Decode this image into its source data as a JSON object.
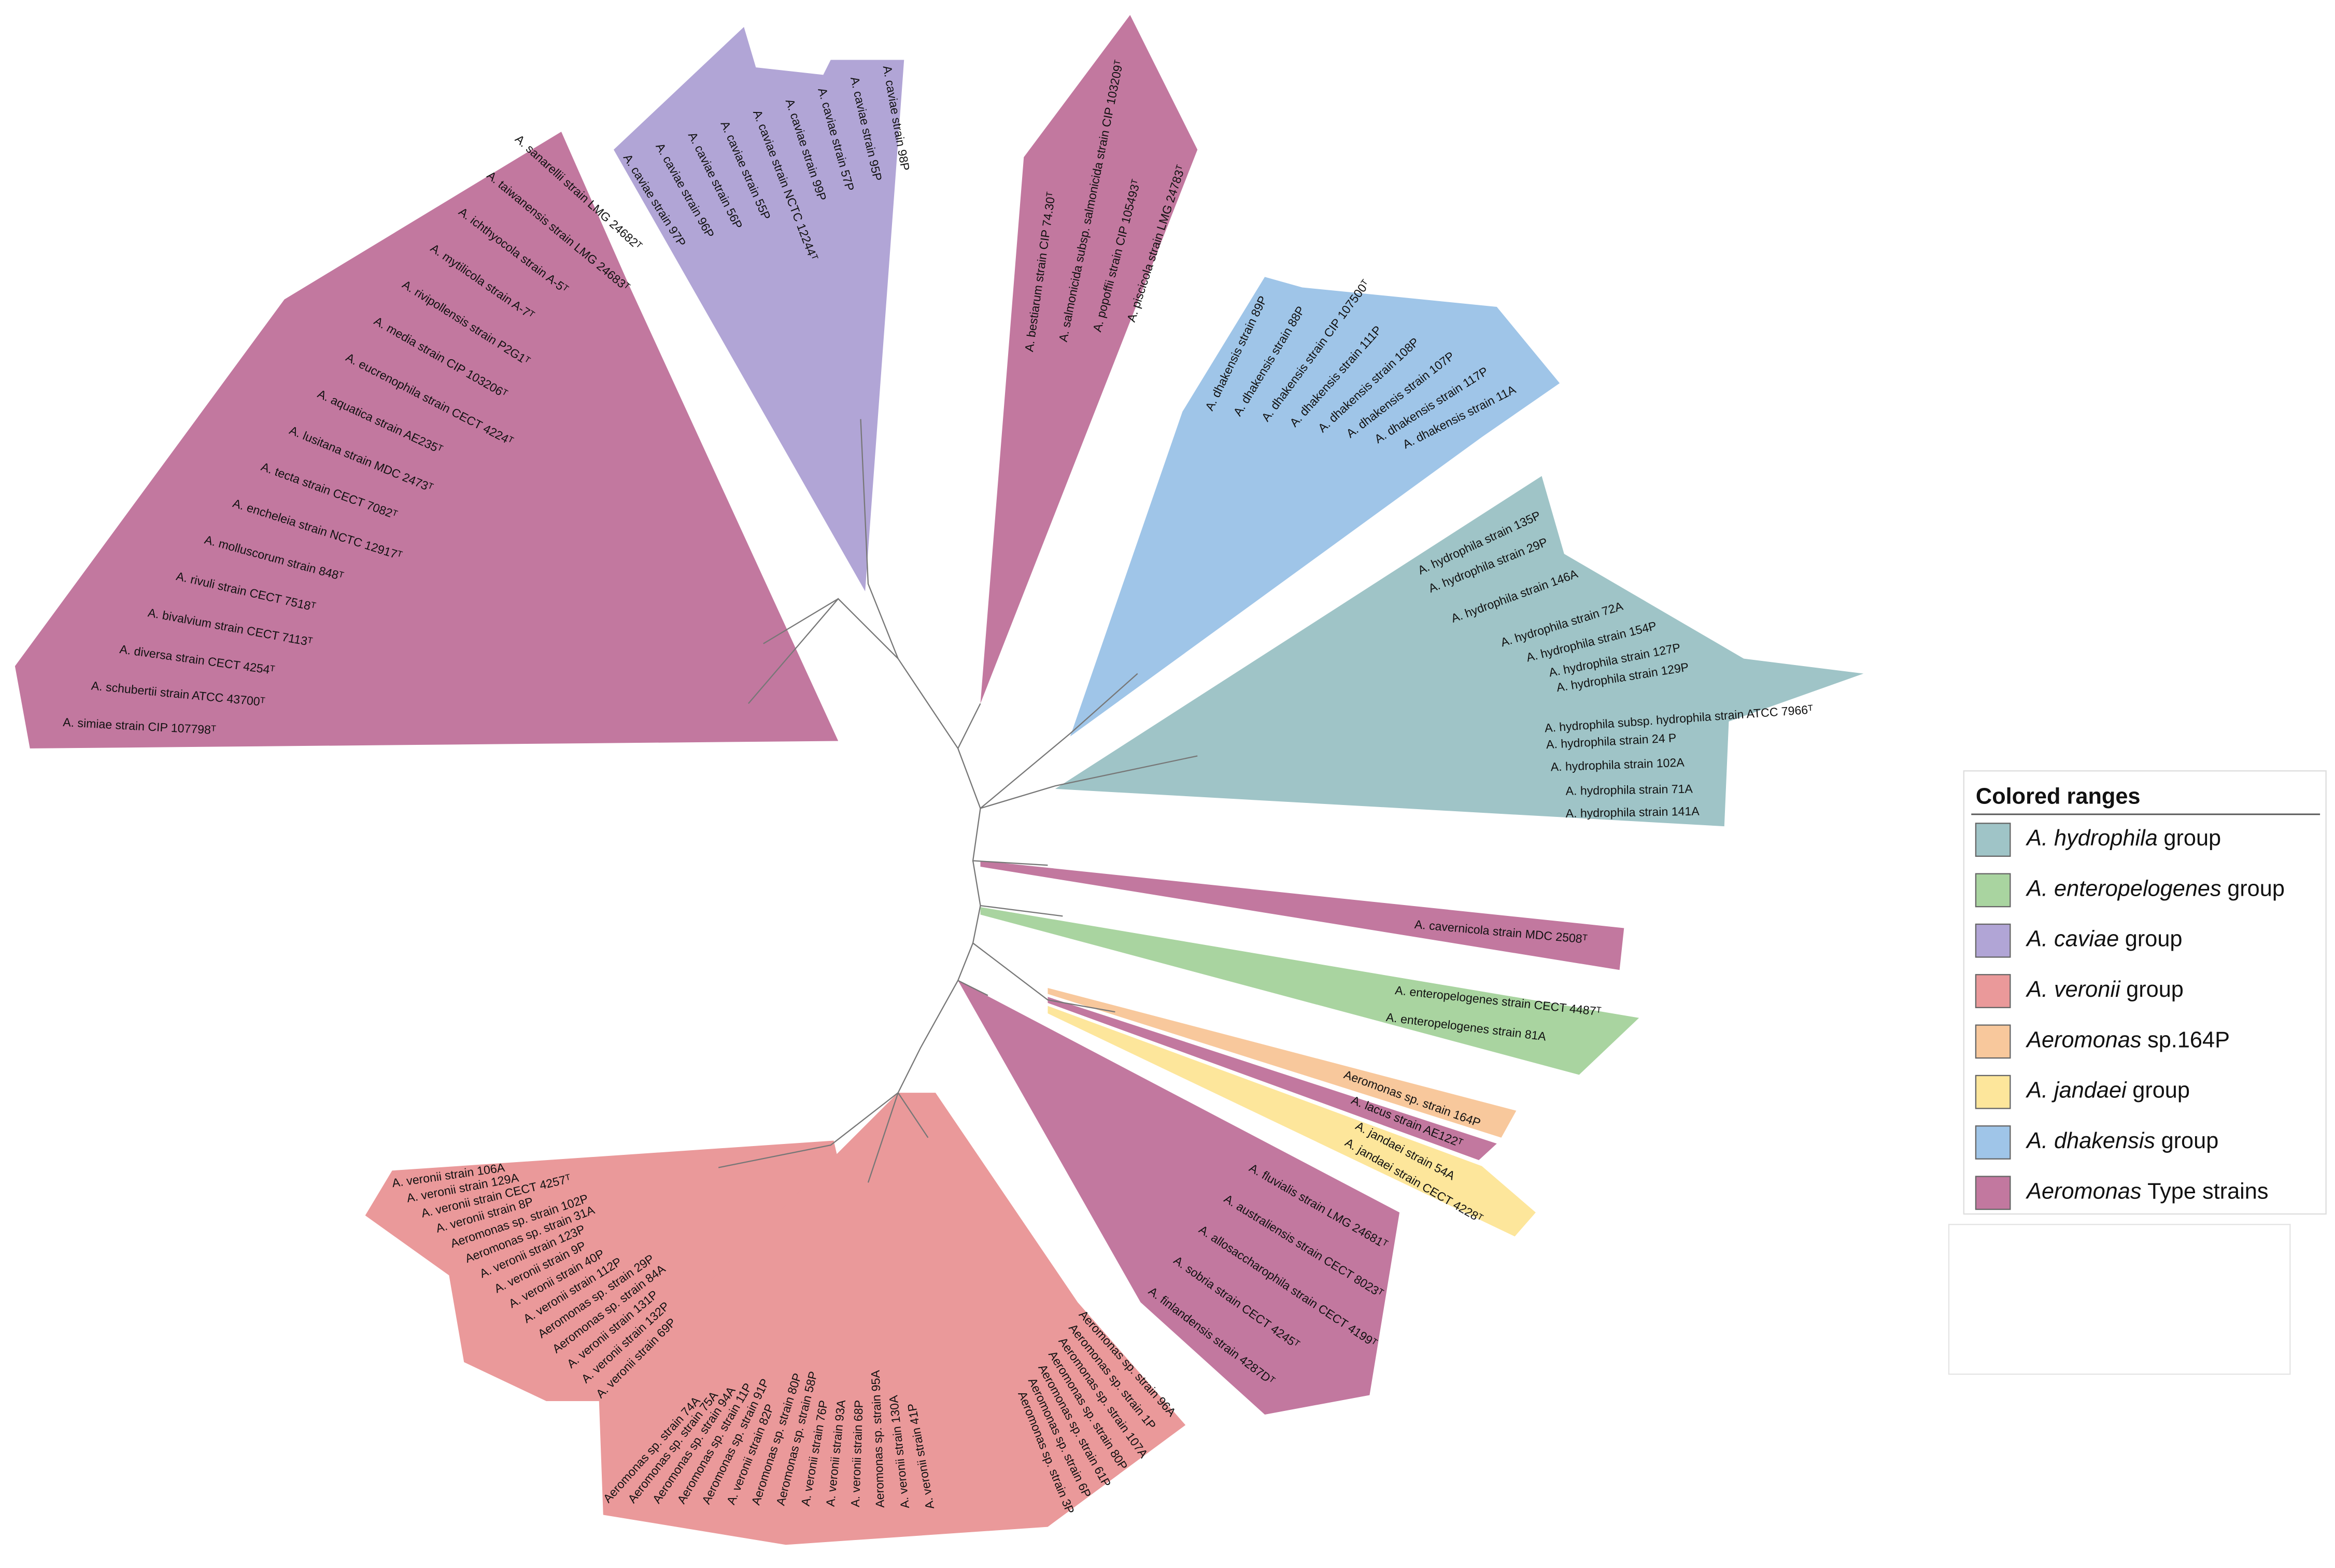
{
  "legend": {
    "title": "Colored ranges",
    "items": [
      {
        "italic": "A. hydrophila",
        "suffix": "group",
        "color": "#9fc4c7"
      },
      {
        "italic": "A. enteropelogenes",
        "suffix": "group",
        "color": "#a9d4a0"
      },
      {
        "italic": "A. caviae",
        "suffix": "group",
        "color": "#b1a5d6"
      },
      {
        "italic": "A. veronii",
        "suffix": "group",
        "color": "#ea999a"
      },
      {
        "italic": "Aeromonas",
        "suffix": "sp.164P",
        "color": "#f8c89c"
      },
      {
        "italic": "A. jandaei",
        "suffix": "group",
        "color": "#fde69b"
      },
      {
        "italic": "A. dhakensis",
        "suffix": "group",
        "color": "#9fc5e8"
      },
      {
        "italic": "Aeromonas",
        "suffix": "Type strains",
        "color": "#c2789f"
      }
    ]
  },
  "ranges": [
    [
      "A. sanarellii strain LMG 24682ᵀ",
      "A. taiwanensis strain LMG 24683ᵀ",
      "A. ichthyocola strain A-5ᵀ",
      "A. mytilicola strain A-7ᵀ",
      "A. rivipollensis strain P2G1ᵀ",
      "A. media strain CIP 103206ᵀ",
      "A. eucrenophila strain CECT 4224ᵀ",
      "A. aquatica strain AE235ᵀ",
      "A. lusitana strain MDC 2473ᵀ",
      "A. tecta strain CECT 7082ᵀ",
      "A. encheleia strain NCTC 12917ᵀ",
      "A. molluscorum strain 848ᵀ",
      "A. rivuli strain CECT 7518ᵀ",
      "A. bivalvium strain CECT 7113ᵀ",
      "A. diversa strain CECT 4254ᵀ",
      "A. schubertii strain ATCC 43700ᵀ",
      "A. simiae strain CIP 107798ᵀ"
    ],
    [
      "A. caviae strain 97P",
      "A. caviae strain 96P",
      "A. caviae strain 56P",
      "A. caviae strain 55P",
      "A. caviae strain NCTC 12244ᵀ",
      "A. caviae strain 99P",
      "A. caviae strain 57P",
      "A. caviae strain 95P",
      "A. caviae strain 98P"
    ],
    [
      "A. bestiarum strain CIP 74.30ᵀ",
      "A. salmonicida subsp. salmonicida strain CIP 103209ᵀ",
      "A. popoffii strain CIP 105493ᵀ",
      "A. piscicola strain LMG 24783ᵀ"
    ],
    [
      "A. dhakensis strain 89P",
      "A. dhakensis strain 88P",
      "A. dhakensis strain CIP 107500ᵀ",
      "A. dhakensis strain 111P",
      "A. dhakensis strain 108P",
      "A. dhakensis strain 107P",
      "A. dhakensis strain 117P",
      "A. dhakensis strain 11A"
    ],
    [
      "A. hydrophila strain 135P",
      "A. hydrophila strain 29P",
      "A. hydrophila strain 146A",
      "A. hydrophila strain 72A",
      "A. hydrophila strain 154P",
      "A. hydrophila strain 127P",
      "A. hydrophila strain 129P",
      "A. hydrophila subsp. hydrophila strain ATCC 7966ᵀ",
      "A. hydrophila strain 24 P",
      "A. hydrophila strain 102A",
      "A. hydrophila strain 71A",
      "A. hydrophila strain 141A"
    ],
    [
      "A. cavernicola strain MDC 2508ᵀ"
    ],
    [
      "A. enteropelogenes strain CECT 4487ᵀ",
      "A. enteropelogenes strain 81A"
    ],
    [
      "Aeromonas sp. strain 164P"
    ],
    [
      "A. lacus strain AE122ᵀ"
    ],
    [
      "A. jandaei strain 54A",
      "A. jandaei strain CECT 4228ᵀ"
    ],
    [
      "A. fluvialis strain LMG 24681ᵀ",
      "A. australiensis strain CECT 8023ᵀ",
      "A. allosaccharophila strain CECT 4199ᵀ",
      "A. sobria strain CECT 4245ᵀ",
      "A. finlandensis strain 4287Dᵀ"
    ],
    [
      "A. veronii strain 106A",
      "A. veronii strain 129A",
      "A. veronii strain CECT 4257ᵀ",
      "A. veronii strain 8P",
      "Aeromonas sp. strain 102P",
      "Aeromonas sp. strain 31A",
      "A. veronii strain 123P",
      "A. veronii strain 9P",
      "A. veronii strain 40P",
      "A. veronii strain 112P",
      "Aeromonas sp. strain 29P",
      "Aeromonas sp. strain 84A",
      "A. veronii strain 131P",
      "A. veronii strain 132P",
      "A. veronii strain 69P"
    ],
    [
      "Aeromonas sp. strain 74A",
      "Aeromonas sp. strain 75A",
      "Aeromonas sp. strain 94A",
      "Aeromonas sp. strain 11P",
      "Aeromonas sp. strain 91P",
      "A. veronii strain 82P",
      "Aeromonas sp. strain 80P",
      "Aeromonas sp. strain 58P",
      "A. veronii strain 76P",
      "A. veronii strain 93A",
      "A. veronii strain 68P",
      "Aeromonas sp. strain 95A",
      "A. veronii strain 130A",
      "A. veronii strain 41P"
    ],
    [
      "Aeromonas sp. strain 96A",
      "Aeromonas sp. strain 1P",
      "Aeromonas sp. strain 107A",
      "Aeromonas sp. strain 80P",
      "Aeromonas sp. strain 61P",
      "Aeromonas sp. strain 6P",
      "Aeromonas sp. strain 3P"
    ]
  ]
}
